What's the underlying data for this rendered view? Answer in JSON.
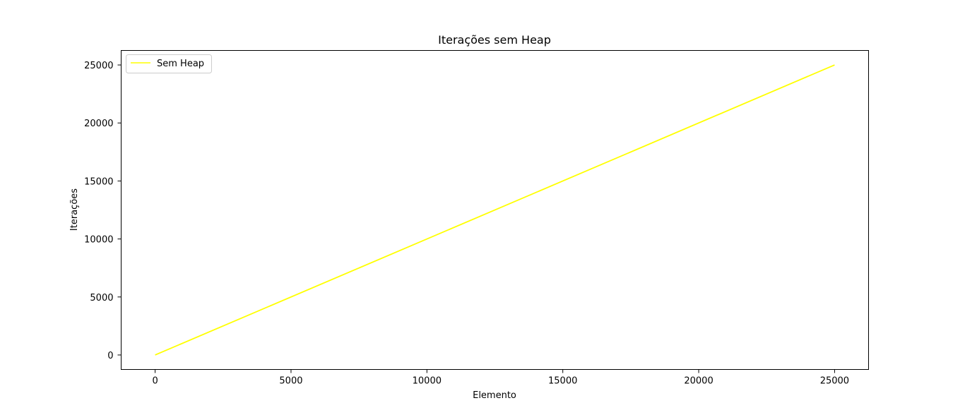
{
  "chart_data": {
    "type": "line",
    "title": "Iterações sem Heap",
    "xlabel": "Elemento",
    "ylabel": "Iterações",
    "xlim": [
      -1250,
      26250
    ],
    "ylim": [
      -1250,
      26250
    ],
    "xticks": [
      0,
      5000,
      10000,
      15000,
      20000,
      25000
    ],
    "yticks": [
      0,
      5000,
      10000,
      15000,
      20000,
      25000
    ],
    "grid": false,
    "legend_position": "top-left",
    "series": [
      {
        "name": "Sem Heap",
        "color": "#ffff00",
        "x": [
          0,
          25000
        ],
        "y": [
          0,
          25000
        ]
      }
    ]
  }
}
